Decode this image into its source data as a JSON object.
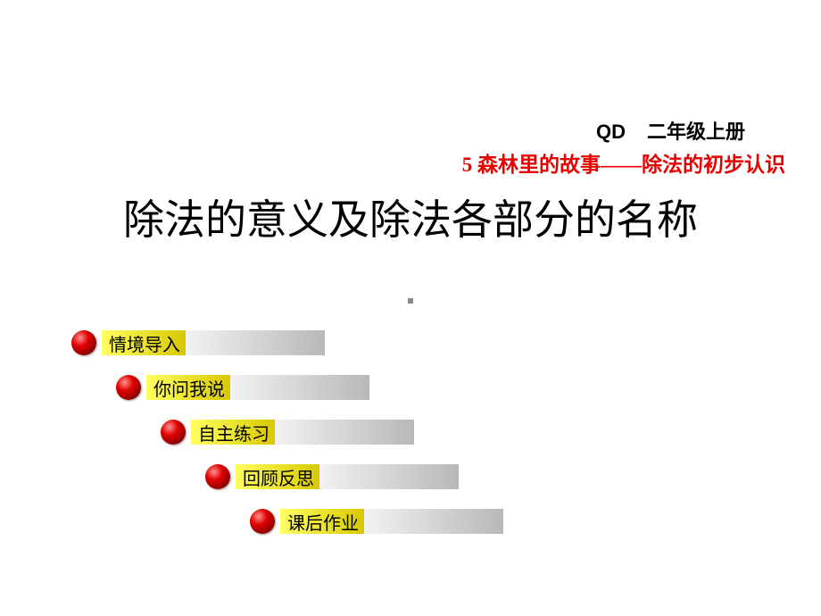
{
  "header": {
    "code": "QD",
    "grade": "二年级上册"
  },
  "subtitle": "5   森林里的故事——除法的初步认识",
  "title": "除法的意义及除法各部分的名称",
  "subtitle_color": "#e60000",
  "menu": {
    "indent_step": 50,
    "label_yellow_width": 94,
    "label_total_width": 250,
    "gradient_yellow_start": "#ffff60",
    "gradient_yellow_end": "#d8c800",
    "gradient_gray_start": "#f2f2f2",
    "gradient_gray_end": "#b8b8b8",
    "bullet_color_light": "#ff9090",
    "bullet_color_mid": "#e00000",
    "bullet_color_dark": "#5a0000",
    "items": [
      {
        "label": "情境导入"
      },
      {
        "label": "你问我说"
      },
      {
        "label": "自主练习"
      },
      {
        "label": "回顾反思"
      },
      {
        "label": "课后作业"
      }
    ]
  }
}
